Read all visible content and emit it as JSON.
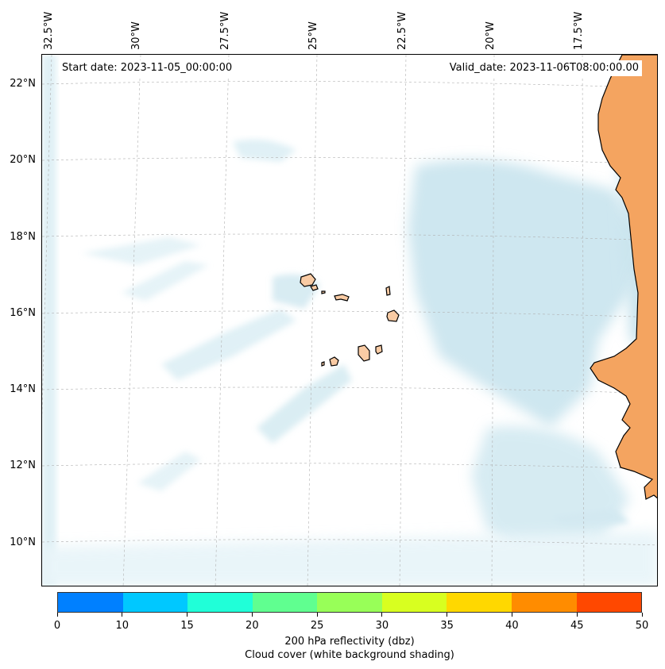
{
  "map": {
    "start_date": "Start date: 2023-11-05_00:00:00",
    "valid_date": "Valid_date: 2023-11-06T08:00:00.00",
    "lon_labels": [
      "32.5°W",
      "30°W",
      "27.5°W",
      "25°W",
      "22.5°W",
      "20°W",
      "17.5°W"
    ],
    "lat_labels": [
      "22°N",
      "20°N",
      "18°N",
      "16°N",
      "14°N",
      "12°N",
      "10°N"
    ],
    "region": "Cabo Verde and West African coast",
    "land_color": "#f4a460",
    "cloud_color": "#add8e6",
    "coastline_color": "#000000"
  },
  "colorbar": {
    "title": "200 hPa reflectivity (dbz)",
    "subtitle": "Cloud cover (white background shading)",
    "ticks": [
      "0",
      "10",
      "15",
      "20",
      "25",
      "30",
      "35",
      "40",
      "45",
      "50"
    ],
    "colors": [
      "#0080ff",
      "#00c8ff",
      "#20ffd8",
      "#60ff90",
      "#98ff58",
      "#d8ff20",
      "#ffd800",
      "#ff8c00",
      "#ff4800"
    ]
  }
}
